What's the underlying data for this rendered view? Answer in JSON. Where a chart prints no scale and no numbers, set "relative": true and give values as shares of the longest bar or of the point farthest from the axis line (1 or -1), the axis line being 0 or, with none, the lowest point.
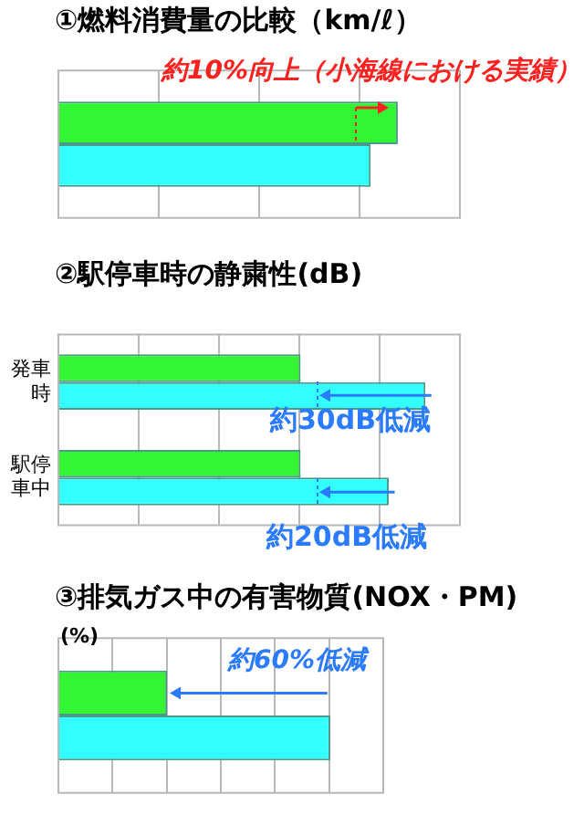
{
  "chart_data": [
    {
      "type": "bar",
      "title": "①燃料消費量の比較（km/ℓ）",
      "orientation": "horizontal",
      "relative": true,
      "grid": "x",
      "categories": [
        null
      ],
      "series": [
        {
          "color": "#33f533",
          "values": [
            1
          ]
        },
        {
          "color": "#33ffff",
          "values": [
            0.92
          ]
        }
      ],
      "annotations": [
        "約10%向上（小海線における実績）"
      ]
    },
    {
      "type": "bar",
      "title": "②駅停車時の静粛性(dB)",
      "orientation": "horizontal",
      "relative": true,
      "grid": "x",
      "categories": [
        "発車時",
        "駅停車中"
      ],
      "series": [
        {
          "color": "#33f533",
          "values": [
            0.66,
            0.66
          ]
        },
        {
          "color": "#33ffff",
          "values": [
            1,
            0.9
          ]
        }
      ],
      "annotations": [
        "約30dB低減",
        "約20dB低減"
      ]
    },
    {
      "type": "bar",
      "title": "③排気ガス中の有害物質(NOX・PM)",
      "orientation": "horizontal",
      "relative": true,
      "grid": "x",
      "categories": [
        null
      ],
      "series": [
        {
          "color": "#33f533",
          "values": [
            0.4
          ]
        },
        {
          "color": "#33ffff",
          "values": [
            1
          ]
        }
      ],
      "annotations": [
        "(%)",
        "約60%低減"
      ]
    }
  ]
}
